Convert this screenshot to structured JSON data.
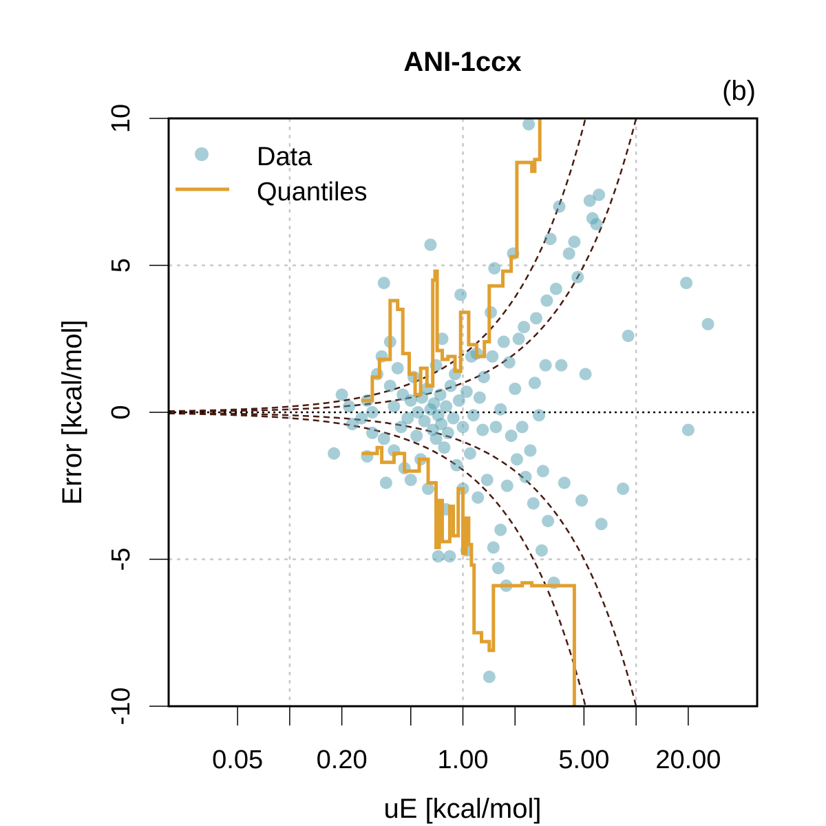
{
  "chart_data": {
    "type": "scatter",
    "title": "ANI-1ccx",
    "panel_label": "(b)",
    "xlabel": "uE [kcal/mol]",
    "ylabel": "Error [kcal/mol]",
    "x_scale": "log",
    "xlim": [
      0.02,
      50
    ],
    "ylim": [
      -10,
      10
    ],
    "x_ticks": [
      {
        "value": 0.05,
        "label": "0.05"
      },
      {
        "value": 0.1,
        "label": ""
      },
      {
        "value": 0.2,
        "label": "0.20"
      },
      {
        "value": 0.5,
        "label": ""
      },
      {
        "value": 1.0,
        "label": "1.00"
      },
      {
        "value": 2.0,
        "label": ""
      },
      {
        "value": 5.0,
        "label": "5.00"
      },
      {
        "value": 10.0,
        "label": ""
      },
      {
        "value": 20.0,
        "label": "20.00"
      }
    ],
    "x_grid": [
      0.1,
      1.0,
      10.0
    ],
    "y_ticks": [
      {
        "value": -10,
        "label": "-10"
      },
      {
        "value": -5,
        "label": "-5"
      },
      {
        "value": 0,
        "label": "0"
      },
      {
        "value": 5,
        "label": "5"
      },
      {
        "value": 10,
        "label": "10"
      }
    ],
    "y_grid": [
      -5,
      5
    ],
    "legend": {
      "position": "top-left",
      "items": [
        {
          "label": "Data",
          "type": "point"
        },
        {
          "label": "Quantiles",
          "type": "line"
        }
      ]
    },
    "guide_curves": {
      "multipliers": [
        -1.96,
        -1.0,
        1.0,
        1.96
      ],
      "formula": "y = k * uE"
    },
    "colors": {
      "points": "#4f9db0",
      "quantiles": "#e0a030",
      "guides": "#4a1a10",
      "grid": "#c8c8c8",
      "zero_line": "#000000"
    },
    "series": [
      {
        "name": "Data",
        "points": [
          {
            "x": 0.18,
            "y": -1.4
          },
          {
            "x": 0.2,
            "y": 0.6
          },
          {
            "x": 0.22,
            "y": 0.2
          },
          {
            "x": 0.23,
            "y": -0.4
          },
          {
            "x": 0.26,
            "y": -0.2
          },
          {
            "x": 0.28,
            "y": -1.5
          },
          {
            "x": 0.28,
            "y": 0.4
          },
          {
            "x": 0.3,
            "y": -0.7
          },
          {
            "x": 0.3,
            "y": 0.0
          },
          {
            "x": 0.32,
            "y": 1.3
          },
          {
            "x": 0.34,
            "y": 1.9
          },
          {
            "x": 0.35,
            "y": 4.4
          },
          {
            "x": 0.35,
            "y": -0.9
          },
          {
            "x": 0.36,
            "y": -2.4
          },
          {
            "x": 0.38,
            "y": 0.9
          },
          {
            "x": 0.38,
            "y": 2.4
          },
          {
            "x": 0.4,
            "y": -1.3
          },
          {
            "x": 0.4,
            "y": 0.2
          },
          {
            "x": 0.42,
            "y": 1.5
          },
          {
            "x": 0.44,
            "y": -0.5
          },
          {
            "x": 0.45,
            "y": 0.6
          },
          {
            "x": 0.46,
            "y": -1.9
          },
          {
            "x": 0.48,
            "y": -0.2
          },
          {
            "x": 0.5,
            "y": 0.4
          },
          {
            "x": 0.5,
            "y": -2.3
          },
          {
            "x": 0.52,
            "y": 1.2
          },
          {
            "x": 0.54,
            "y": -0.8
          },
          {
            "x": 0.55,
            "y": 0.0
          },
          {
            "x": 0.57,
            "y": -1.6
          },
          {
            "x": 0.58,
            "y": 0.5
          },
          {
            "x": 0.6,
            "y": -0.3
          },
          {
            "x": 0.62,
            "y": 0.8
          },
          {
            "x": 0.63,
            "y": -2.6
          },
          {
            "x": 0.65,
            "y": 5.7
          },
          {
            "x": 0.65,
            "y": 0.1
          },
          {
            "x": 0.67,
            "y": -0.6
          },
          {
            "x": 0.68,
            "y": 0.3
          },
          {
            "x": 0.7,
            "y": -0.9
          },
          {
            "x": 0.7,
            "y": 1.6
          },
          {
            "x": 0.72,
            "y": -0.1
          },
          {
            "x": 0.72,
            "y": -4.9
          },
          {
            "x": 0.74,
            "y": 0.6
          },
          {
            "x": 0.75,
            "y": -0.4
          },
          {
            "x": 0.76,
            "y": 2.5
          },
          {
            "x": 0.78,
            "y": -1.2
          },
          {
            "x": 0.8,
            "y": 0.2
          },
          {
            "x": 0.8,
            "y": -3.3
          },
          {
            "x": 0.82,
            "y": -0.7
          },
          {
            "x": 0.84,
            "y": -4.9
          },
          {
            "x": 0.85,
            "y": 0.9
          },
          {
            "x": 0.88,
            "y": -0.2
          },
          {
            "x": 0.9,
            "y": 1.3
          },
          {
            "x": 0.92,
            "y": -1.8
          },
          {
            "x": 0.95,
            "y": 0.4
          },
          {
            "x": 0.97,
            "y": 4.0
          },
          {
            "x": 1.0,
            "y": -0.5
          },
          {
            "x": 1.0,
            "y": -2.6
          },
          {
            "x": 1.05,
            "y": 0.7
          },
          {
            "x": 1.05,
            "y": -4.7
          },
          {
            "x": 1.1,
            "y": -1.4
          },
          {
            "x": 1.12,
            "y": 1.9
          },
          {
            "x": 1.15,
            "y": -0.1
          },
          {
            "x": 1.2,
            "y": 2.0
          },
          {
            "x": 1.22,
            "y": -2.9
          },
          {
            "x": 1.25,
            "y": 0.5
          },
          {
            "x": 1.3,
            "y": -0.6
          },
          {
            "x": 1.32,
            "y": 1.2
          },
          {
            "x": 1.38,
            "y": -2.3
          },
          {
            "x": 1.42,
            "y": -9.0
          },
          {
            "x": 1.45,
            "y": 3.4
          },
          {
            "x": 1.48,
            "y": 1.9
          },
          {
            "x": 1.5,
            "y": -4.6
          },
          {
            "x": 1.52,
            "y": 4.9
          },
          {
            "x": 1.55,
            "y": -0.5
          },
          {
            "x": 1.6,
            "y": -5.3
          },
          {
            "x": 1.65,
            "y": 0.1
          },
          {
            "x": 1.65,
            "y": -4.0
          },
          {
            "x": 1.72,
            "y": 2.4
          },
          {
            "x": 1.78,
            "y": -5.9
          },
          {
            "x": 1.8,
            "y": -2.5
          },
          {
            "x": 1.85,
            "y": 1.7
          },
          {
            "x": 1.9,
            "y": -0.8
          },
          {
            "x": 1.95,
            "y": 5.4
          },
          {
            "x": 2.0,
            "y": 0.8
          },
          {
            "x": 2.05,
            "y": -1.6
          },
          {
            "x": 2.1,
            "y": 2.5
          },
          {
            "x": 2.2,
            "y": -0.5
          },
          {
            "x": 2.25,
            "y": 2.9
          },
          {
            "x": 2.3,
            "y": -2.2
          },
          {
            "x": 2.4,
            "y": 9.8
          },
          {
            "x": 2.45,
            "y": -1.3
          },
          {
            "x": 2.55,
            "y": -3.1
          },
          {
            "x": 2.6,
            "y": 1.0
          },
          {
            "x": 2.65,
            "y": 3.2
          },
          {
            "x": 2.75,
            "y": -0.1
          },
          {
            "x": 2.85,
            "y": -4.7
          },
          {
            "x": 2.9,
            "y": -2.0
          },
          {
            "x": 3.0,
            "y": 1.6
          },
          {
            "x": 3.05,
            "y": 3.8
          },
          {
            "x": 3.1,
            "y": -3.7
          },
          {
            "x": 3.2,
            "y": 5.9
          },
          {
            "x": 3.35,
            "y": -5.8
          },
          {
            "x": 3.45,
            "y": 4.2
          },
          {
            "x": 3.6,
            "y": 7.0
          },
          {
            "x": 3.7,
            "y": 1.6
          },
          {
            "x": 3.85,
            "y": -2.4
          },
          {
            "x": 4.1,
            "y": 5.4
          },
          {
            "x": 4.4,
            "y": 5.8
          },
          {
            "x": 4.6,
            "y": 4.6
          },
          {
            "x": 4.85,
            "y": -3.0
          },
          {
            "x": 5.1,
            "y": 1.3
          },
          {
            "x": 5.4,
            "y": 7.2
          },
          {
            "x": 5.6,
            "y": 6.6
          },
          {
            "x": 5.9,
            "y": 6.4
          },
          {
            "x": 6.1,
            "y": 7.4
          },
          {
            "x": 6.3,
            "y": -3.8
          },
          {
            "x": 8.4,
            "y": -2.6
          },
          {
            "x": 9.0,
            "y": 2.6
          },
          {
            "x": 19.5,
            "y": 4.4
          },
          {
            "x": 20.0,
            "y": -0.6
          },
          {
            "x": 26.0,
            "y": 3.0
          }
        ]
      },
      {
        "name": "Quantiles",
        "upper": [
          {
            "x": 0.26,
            "y": 0.4
          },
          {
            "x": 0.3,
            "y": 0.4
          },
          {
            "x": 0.3,
            "y": 1.2
          },
          {
            "x": 0.33,
            "y": 1.2
          },
          {
            "x": 0.33,
            "y": 1.8
          },
          {
            "x": 0.38,
            "y": 1.8
          },
          {
            "x": 0.38,
            "y": 3.8
          },
          {
            "x": 0.42,
            "y": 3.8
          },
          {
            "x": 0.42,
            "y": 3.5
          },
          {
            "x": 0.45,
            "y": 3.5
          },
          {
            "x": 0.45,
            "y": 2.0
          },
          {
            "x": 0.49,
            "y": 2.0
          },
          {
            "x": 0.49,
            "y": 1.3
          },
          {
            "x": 0.53,
            "y": 1.3
          },
          {
            "x": 0.53,
            "y": 0.6
          },
          {
            "x": 0.57,
            "y": 0.6
          },
          {
            "x": 0.57,
            "y": 1.5
          },
          {
            "x": 0.62,
            "y": 1.5
          },
          {
            "x": 0.62,
            "y": 0.9
          },
          {
            "x": 0.67,
            "y": 0.9
          },
          {
            "x": 0.67,
            "y": 4.5
          },
          {
            "x": 0.69,
            "y": 4.5
          },
          {
            "x": 0.69,
            "y": 4.8
          },
          {
            "x": 0.71,
            "y": 4.8
          },
          {
            "x": 0.71,
            "y": 2.1
          },
          {
            "x": 0.76,
            "y": 2.1
          },
          {
            "x": 0.76,
            "y": 1.8
          },
          {
            "x": 0.82,
            "y": 1.8
          },
          {
            "x": 0.82,
            "y": 1.9
          },
          {
            "x": 0.9,
            "y": 1.9
          },
          {
            "x": 0.9,
            "y": 1.4
          },
          {
            "x": 0.97,
            "y": 1.4
          },
          {
            "x": 0.97,
            "y": 3.4
          },
          {
            "x": 1.08,
            "y": 3.4
          },
          {
            "x": 1.08,
            "y": 2.3
          },
          {
            "x": 1.2,
            "y": 2.3
          },
          {
            "x": 1.2,
            "y": 1.9
          },
          {
            "x": 1.33,
            "y": 1.9
          },
          {
            "x": 1.33,
            "y": 2.4
          },
          {
            "x": 1.42,
            "y": 2.4
          },
          {
            "x": 1.42,
            "y": 4.3
          },
          {
            "x": 1.7,
            "y": 4.3
          },
          {
            "x": 1.7,
            "y": 4.8
          },
          {
            "x": 1.9,
            "y": 4.8
          },
          {
            "x": 1.9,
            "y": 5.3
          },
          {
            "x": 2.05,
            "y": 5.3
          },
          {
            "x": 2.05,
            "y": 8.5
          },
          {
            "x": 2.5,
            "y": 8.5
          },
          {
            "x": 2.5,
            "y": 8.2
          },
          {
            "x": 2.6,
            "y": 8.2
          },
          {
            "x": 2.6,
            "y": 8.6
          },
          {
            "x": 2.78,
            "y": 8.6
          },
          {
            "x": 2.78,
            "y": 10.5
          }
        ],
        "lower": [
          {
            "x": 0.26,
            "y": -1.4
          },
          {
            "x": 0.32,
            "y": -1.4
          },
          {
            "x": 0.32,
            "y": -1.2
          },
          {
            "x": 0.34,
            "y": -1.2
          },
          {
            "x": 0.34,
            "y": -1.7
          },
          {
            "x": 0.4,
            "y": -1.7
          },
          {
            "x": 0.4,
            "y": -1.4
          },
          {
            "x": 0.46,
            "y": -1.4
          },
          {
            "x": 0.46,
            "y": -2.0
          },
          {
            "x": 0.56,
            "y": -2.0
          },
          {
            "x": 0.56,
            "y": -1.6
          },
          {
            "x": 0.63,
            "y": -1.6
          },
          {
            "x": 0.63,
            "y": -2.4
          },
          {
            "x": 0.7,
            "y": -2.4
          },
          {
            "x": 0.7,
            "y": -4.6
          },
          {
            "x": 0.73,
            "y": -4.6
          },
          {
            "x": 0.73,
            "y": -3.0
          },
          {
            "x": 0.76,
            "y": -3.0
          },
          {
            "x": 0.76,
            "y": -4.4
          },
          {
            "x": 0.84,
            "y": -4.4
          },
          {
            "x": 0.84,
            "y": -3.2
          },
          {
            "x": 0.88,
            "y": -3.2
          },
          {
            "x": 0.88,
            "y": -4.2
          },
          {
            "x": 0.94,
            "y": -4.2
          },
          {
            "x": 0.94,
            "y": -2.6
          },
          {
            "x": 1.0,
            "y": -2.6
          },
          {
            "x": 1.0,
            "y": -4.8
          },
          {
            "x": 1.04,
            "y": -4.8
          },
          {
            "x": 1.04,
            "y": -3.6
          },
          {
            "x": 1.08,
            "y": -3.6
          },
          {
            "x": 1.08,
            "y": -4.5
          },
          {
            "x": 1.12,
            "y": -4.5
          },
          {
            "x": 1.12,
            "y": -5.2
          },
          {
            "x": 1.16,
            "y": -5.2
          },
          {
            "x": 1.16,
            "y": -7.5
          },
          {
            "x": 1.28,
            "y": -7.5
          },
          {
            "x": 1.28,
            "y": -7.8
          },
          {
            "x": 1.42,
            "y": -7.8
          },
          {
            "x": 1.42,
            "y": -8.1
          },
          {
            "x": 1.5,
            "y": -8.1
          },
          {
            "x": 1.5,
            "y": -5.9
          },
          {
            "x": 2.2,
            "y": -5.9
          },
          {
            "x": 2.2,
            "y": -5.8
          },
          {
            "x": 2.5,
            "y": -5.8
          },
          {
            "x": 2.5,
            "y": -5.9
          },
          {
            "x": 4.4,
            "y": -5.9
          },
          {
            "x": 4.4,
            "y": -10.5
          }
        ]
      }
    ]
  }
}
